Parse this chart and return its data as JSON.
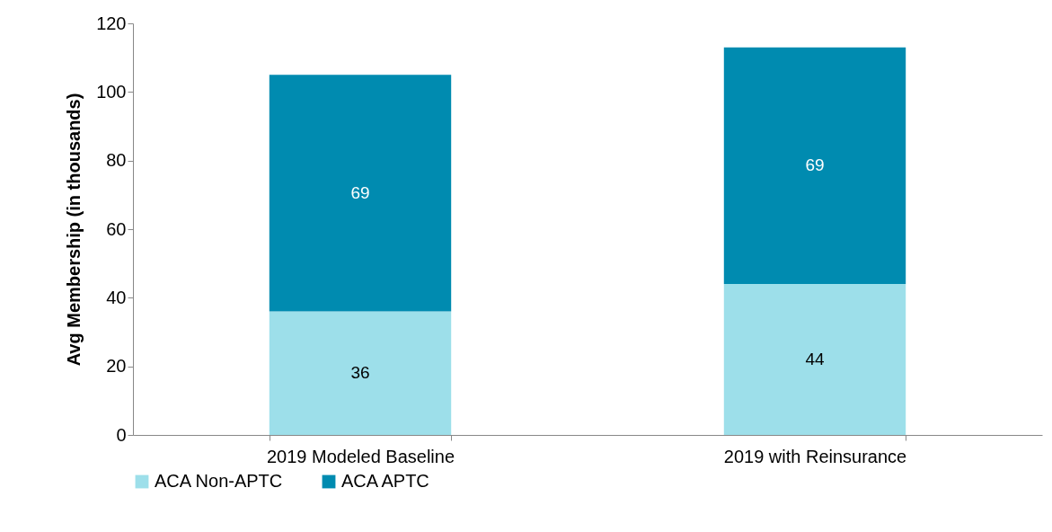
{
  "chart_data": {
    "type": "bar",
    "stacked": true,
    "ylabel": "Avg Membership (in thousands)",
    "categories": [
      "2019 Modeled Baseline",
      "2019 with Reinsurance"
    ],
    "series": [
      {
        "name": "ACA Non-APTC",
        "color": "#9ddfea",
        "values": [
          36,
          44
        ]
      },
      {
        "name": "ACA APTC",
        "color": "#008bb0",
        "values": [
          69,
          69
        ]
      }
    ],
    "ylim": [
      0,
      120
    ],
    "yticks": [
      0,
      20,
      40,
      60,
      80,
      100,
      120
    ],
    "data_labels": true,
    "legend": "bottom",
    "grid": false
  }
}
